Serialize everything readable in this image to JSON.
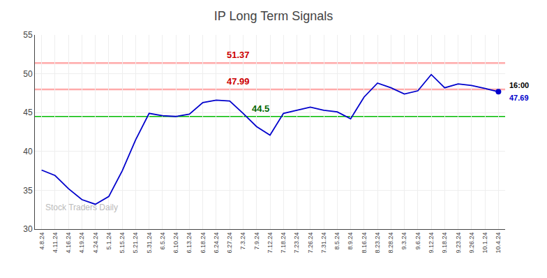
{
  "chart_data": {
    "type": "line",
    "title": "IP Long Term Signals",
    "color": "#0000cc",
    "categories": [
      "4.8.24",
      "4.11.24",
      "4.16.24",
      "4.19.24",
      "4.24.24",
      "5.1.24",
      "5.15.24",
      "5.21.24",
      "5.31.24",
      "6.5.24",
      "6.10.24",
      "6.13.24",
      "6.18.24",
      "6.24.24",
      "6.27.24",
      "7.3.24",
      "7.9.24",
      "7.12.24",
      "7.18.24",
      "7.23.24",
      "7.26.24",
      "7.31.24",
      "8.5.24",
      "8.9.24",
      "8.16.24",
      "8.23.24",
      "8.28.24",
      "9.3.24",
      "9.6.24",
      "9.12.24",
      "9.18.24",
      "9.23.24",
      "9.26.24",
      "10.1.24",
      "10.4.24"
    ],
    "values": [
      37.6,
      36.9,
      35.2,
      33.8,
      33.2,
      34.2,
      37.5,
      41.5,
      44.9,
      44.6,
      44.5,
      44.8,
      46.3,
      46.6,
      46.5,
      44.9,
      43.2,
      42.1,
      44.9,
      45.3,
      45.7,
      45.3,
      45.1,
      44.2,
      47.0,
      48.8,
      48.2,
      47.4,
      47.8,
      49.9,
      48.2,
      48.7,
      48.5,
      48.1,
      47.69
    ],
    "reference_lines": [
      {
        "value": 51.37,
        "label": "51.37",
        "color": "#ffaaaa",
        "label_color": "#cc0000"
      },
      {
        "value": 47.99,
        "label": "47.99",
        "color": "#ffaaaa",
        "label_color": "#cc0000"
      },
      {
        "value": 44.5,
        "label": "44.5",
        "color": "#00bb00",
        "label_color": "#006600"
      }
    ],
    "end_labels": [
      "16:00",
      "47.69"
    ],
    "watermark": "Stock Traders Daily",
    "ylim": [
      30,
      55
    ],
    "yticks": [
      30,
      35,
      40,
      45,
      50,
      55
    ],
    "grid": true
  }
}
